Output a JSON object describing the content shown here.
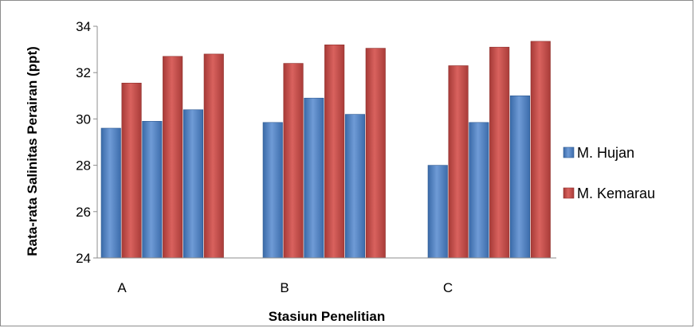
{
  "chart_data": {
    "type": "bar",
    "categories": [
      "A",
      "B",
      "C"
    ],
    "bars_per_group": 6,
    "series": [
      {
        "name": "M. Hujan",
        "color": "#4a7ebb",
        "values": [
          [
            29.6,
            29.9,
            30.4
          ],
          [
            29.85,
            30.9,
            30.2
          ],
          [
            28.0,
            29.85,
            31.0
          ]
        ]
      },
      {
        "name": "M. Kemarau",
        "color": "#be4b48",
        "values": [
          [
            31.55,
            32.7,
            32.8
          ],
          [
            32.4,
            33.2,
            33.05
          ],
          [
            32.3,
            33.1,
            33.35
          ]
        ]
      }
    ],
    "ylim": [
      24,
      34
    ],
    "yticks": [
      24,
      26,
      28,
      30,
      32,
      34
    ],
    "xlabel": "Stasiun  Penelitian",
    "ylabel": "Rata-rata Salinitas Perairan (ppt)",
    "legend_position": "right",
    "grid": false
  }
}
